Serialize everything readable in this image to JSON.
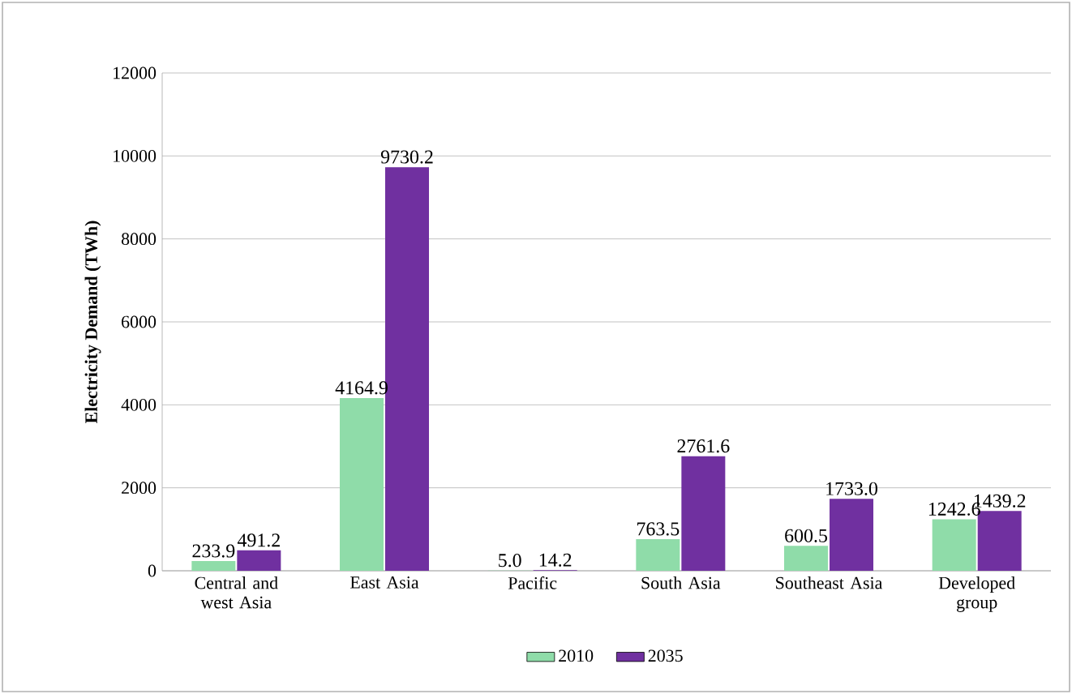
{
  "chart_data": {
    "type": "bar",
    "ylabel": "Electricity Demand (TWh)",
    "categories": [
      "Central and west Asia",
      "East Asia",
      "Pacific",
      "South Asia",
      "Southeast Asia",
      "Developed group"
    ],
    "series": [
      {
        "name": "2010",
        "color": "#8fdca9",
        "values": [
          233.9,
          4164.9,
          5.0,
          763.5,
          600.5,
          1242.6
        ],
        "value_labels": [
          "233.9",
          "4164.9",
          "5.0",
          "763.5",
          "600.5",
          "1242.6"
        ]
      },
      {
        "name": "2035",
        "color": "#7030a0",
        "values": [
          491.2,
          9730.2,
          14.2,
          2761.6,
          1733.0,
          1439.2
        ],
        "value_labels": [
          "491.2",
          "9730.2",
          "14.2",
          "2761.6",
          "1733.0",
          "1439.2"
        ]
      }
    ],
    "ylim": [
      0,
      12000
    ],
    "yticks": [
      0,
      2000,
      4000,
      6000,
      8000,
      10000,
      12000
    ],
    "grid": "y",
    "legend": "bottom"
  }
}
